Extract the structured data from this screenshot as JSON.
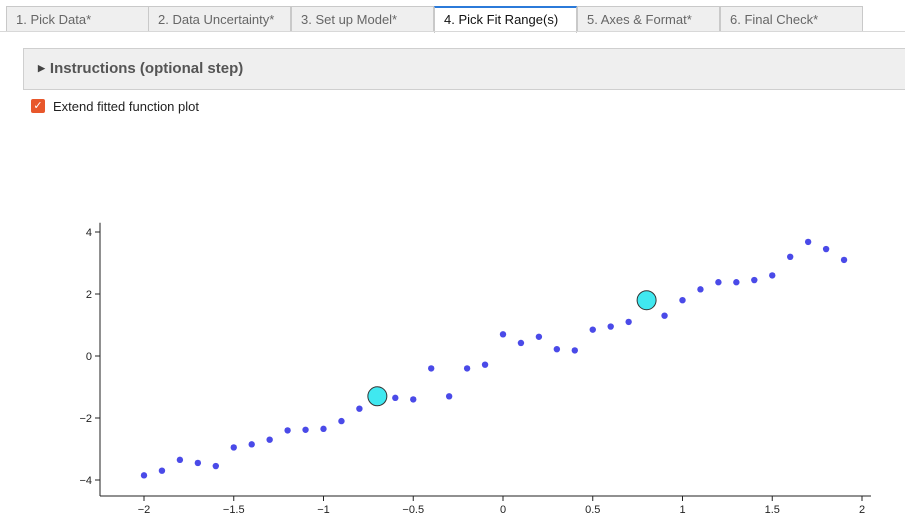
{
  "tabs": [
    {
      "label": "1. Pick Data*",
      "active": false
    },
    {
      "label": "2. Data Uncertainty*",
      "active": false
    },
    {
      "label": "3. Set up Model*",
      "active": false
    },
    {
      "label": "4. Pick Fit Range(s)",
      "active": true
    },
    {
      "label": "5. Axes & Format*",
      "active": false
    },
    {
      "label": "6. Final Check*",
      "active": false
    }
  ],
  "instructions": {
    "label": "Instructions (optional step)",
    "caret_icon": "caret-right-icon"
  },
  "extend_option": {
    "label": "Extend fitted function plot",
    "checked": true,
    "color": "#e8572b"
  },
  "chart_data": {
    "type": "scatter",
    "title": "",
    "xlabel": "",
    "ylabel": "",
    "xlim": [
      -2.2,
      2.05
    ],
    "ylim": [
      -4.3,
      4.3
    ],
    "x_ticks": [
      -2,
      -1.5,
      -1,
      -0.5,
      0,
      0.5,
      1,
      1.5,
      2
    ],
    "x_tick_labels": [
      "−2",
      "−1.5",
      "−1",
      "−0.5",
      "0",
      "0.5",
      "1",
      "1.5",
      "2"
    ],
    "y_ticks": [
      -4,
      -2,
      0,
      2,
      4
    ],
    "y_tick_labels": [
      "−4",
      "−2",
      "0",
      "2",
      "4"
    ],
    "grid": false,
    "point_color": "#4a4ae8",
    "points": {
      "x": [
        -2.0,
        -1.9,
        -1.8,
        -1.7,
        -1.6,
        -1.5,
        -1.4,
        -1.3,
        -1.2,
        -1.1,
        -1.0,
        -0.9,
        -0.8,
        -0.7,
        -0.6,
        -0.5,
        -0.4,
        -0.3,
        -0.2,
        -0.1,
        0.0,
        0.1,
        0.2,
        0.3,
        0.4,
        0.5,
        0.6,
        0.7,
        0.8,
        0.9,
        1.0,
        1.1,
        1.2,
        1.3,
        1.4,
        1.5,
        1.6,
        1.7,
        1.8,
        1.9
      ],
      "y": [
        -3.85,
        -3.7,
        -3.35,
        -3.45,
        -3.55,
        -2.95,
        -2.85,
        -2.7,
        -2.4,
        -2.38,
        -2.35,
        -2.1,
        -1.7,
        -1.3,
        -1.35,
        -1.4,
        -0.4,
        -1.3,
        -0.4,
        -0.28,
        0.7,
        0.42,
        0.62,
        0.22,
        0.18,
        0.85,
        0.95,
        1.1,
        1.8,
        1.3,
        1.8,
        2.15,
        2.38,
        2.38,
        2.45,
        2.6,
        3.2,
        3.68,
        3.45,
        3.1
      ]
    },
    "range_handles": {
      "x": [
        -0.7,
        0.8
      ],
      "y": [
        -1.3,
        1.8
      ],
      "color": "#40e8f0"
    }
  }
}
